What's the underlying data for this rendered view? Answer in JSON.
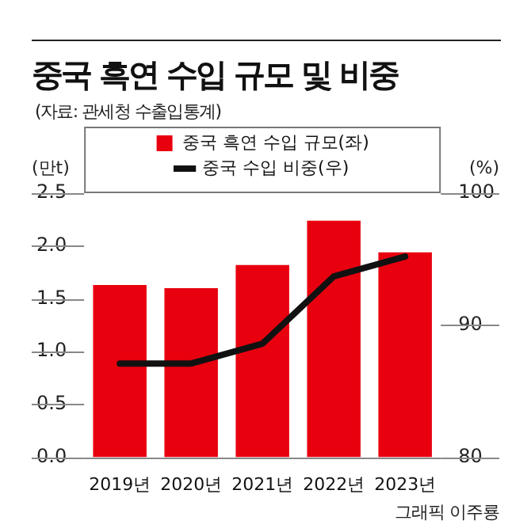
{
  "chart_data": {
    "type": "bar",
    "title": "중국 흑연 수입 규모 및 비중",
    "subtitle": "(자료: 관세청 수출입통계)",
    "ylabel": "(만t)",
    "y2label": "(%)",
    "categories": [
      "2019년",
      "2020년",
      "2021년",
      "2022년",
      "2023년"
    ],
    "series": [
      {
        "name": "중국 흑연 수입 규모(좌)",
        "color": "#e8000f",
        "values": [
          1.63,
          1.6,
          1.82,
          2.24,
          1.94
        ]
      },
      {
        "name": "중국 수입 비중(우)",
        "type": "line",
        "axis": "y2",
        "color": "#111111",
        "values": [
          87.1,
          87.1,
          88.6,
          93.7,
          95.2
        ]
      }
    ],
    "ylim": [
      0,
      2.5
    ],
    "yticks": [
      {
        "value": 0,
        "label": "0.0"
      },
      0.5,
      {
        "value": 1,
        "label": "1.0"
      },
      1.5,
      {
        "value": 2,
        "label": "2.0"
      },
      2.5
    ],
    "y2lim": [
      80,
      100
    ],
    "y2ticks": [
      80,
      90,
      100
    ],
    "legend": "top",
    "marker": "none",
    "line_style": "solid",
    "annotations": [
      "그래픽 이주룡"
    ]
  }
}
